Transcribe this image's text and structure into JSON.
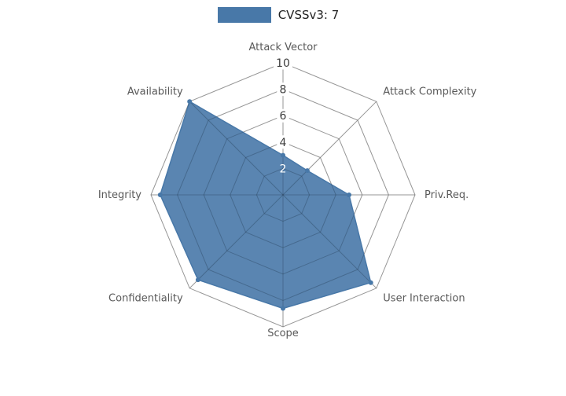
{
  "chart_data": {
    "type": "radar",
    "title": "CVSSv3: 7",
    "categories": [
      "Attack Vector",
      "Attack Complexity",
      "Priv.Req.",
      "User Interaction",
      "Scope",
      "Confidentiality",
      "Integrity",
      "Availability"
    ],
    "series": [
      {
        "name": "CVSSv3: 7",
        "values": [
          3.0,
          2.6,
          5.0,
          9.4,
          8.6,
          9.1,
          9.3,
          10.0
        ]
      }
    ],
    "radial_ticks": [
      2,
      4,
      6,
      8,
      10
    ],
    "rlim": [
      0,
      10
    ],
    "grid": true,
    "legend_position": "top-center",
    "colors": {
      "series_fill": "#4878a8",
      "grid_line": "#b3b3b3",
      "grid_line_overlay": "rgba(0,0,0,0.16)",
      "tick_label": "#3d3d3d",
      "tick_label_inside": "#ffffff",
      "tick_box": "#ffffff",
      "axis_label": "#595959",
      "legend_text": "#222222",
      "background": "#ffffff"
    }
  }
}
